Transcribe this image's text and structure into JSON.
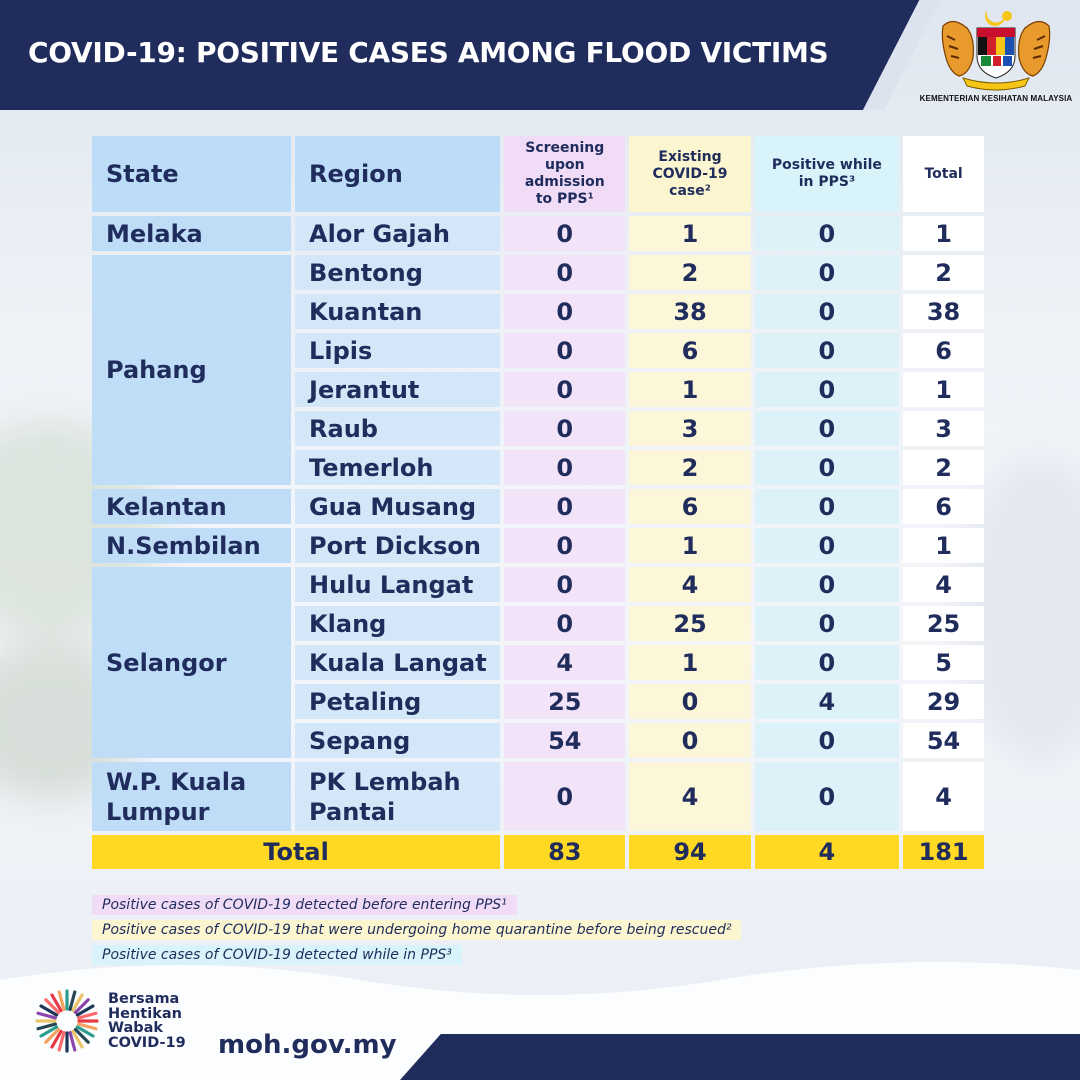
{
  "header": {
    "title": "COVID-19: POSITIVE CASES AMONG FLOOD VICTIMS"
  },
  "logo": {
    "caption": "KEMENTERIAN KESIHATAN MALAYSIA",
    "icon": "coat-of-arms-icon"
  },
  "table": {
    "headers": {
      "state": "State",
      "region": "Region",
      "screening": [
        "Screening",
        "upon",
        "admission",
        "to PPS¹"
      ],
      "existing": [
        "Existing",
        "COVID-19",
        "case²"
      ],
      "positive": [
        "Positive while",
        "in PPS³"
      ],
      "total": "Total"
    },
    "states": [
      {
        "name": "Melaka",
        "regions": [
          {
            "region": "Alor Gajah",
            "screening": "0",
            "existing": "1",
            "positive": "0",
            "total": "1"
          }
        ]
      },
      {
        "name": "Pahang",
        "regions": [
          {
            "region": "Bentong",
            "screening": "0",
            "existing": "2",
            "positive": "0",
            "total": "2"
          },
          {
            "region": "Kuantan",
            "screening": "0",
            "existing": "38",
            "positive": "0",
            "total": "38"
          },
          {
            "region": "Lipis",
            "screening": "0",
            "existing": "6",
            "positive": "0",
            "total": "6"
          },
          {
            "region": "Jerantut",
            "screening": "0",
            "existing": "1",
            "positive": "0",
            "total": "1"
          },
          {
            "region": "Raub",
            "screening": "0",
            "existing": "3",
            "positive": "0",
            "total": "3"
          },
          {
            "region": "Temerloh",
            "screening": "0",
            "existing": "2",
            "positive": "0",
            "total": "2"
          }
        ]
      },
      {
        "name": "Kelantan",
        "regions": [
          {
            "region": "Gua Musang",
            "screening": "0",
            "existing": "6",
            "positive": "0",
            "total": "6"
          }
        ]
      },
      {
        "name": "N.Sembilan",
        "regions": [
          {
            "region": "Port Dickson",
            "screening": "0",
            "existing": "1",
            "positive": "0",
            "total": "1"
          }
        ]
      },
      {
        "name": "Selangor",
        "regions": [
          {
            "region": "Hulu Langat",
            "screening": "0",
            "existing": "4",
            "positive": "0",
            "total": "4"
          },
          {
            "region": "Klang",
            "screening": "0",
            "existing": "25",
            "positive": "0",
            "total": "25"
          },
          {
            "region": "Kuala Langat",
            "screening": "4",
            "existing": "1",
            "positive": "0",
            "total": "5"
          },
          {
            "region": "Petaling",
            "screening": "25",
            "existing": "0",
            "positive": "4",
            "total": "29"
          },
          {
            "region": "Sepang",
            "screening": "54",
            "existing": "0",
            "positive": "0",
            "total": "54"
          }
        ]
      },
      {
        "name": "W.P. Kuala Lumpur",
        "regions": [
          {
            "region": "PK Lembah Pantai",
            "screening": "0",
            "existing": "4",
            "positive": "0",
            "total": "4"
          }
        ]
      }
    ],
    "totals": {
      "label": "Total",
      "screening": "83",
      "existing": "94",
      "positive": "4",
      "total": "181"
    }
  },
  "footnotes": [
    "Positive cases of COVID-19 detected before entering PPS¹",
    "Positive cases of COVID-19 that were undergoing home quarantine before being rescued²",
    "Positive cases of COVID-19 detected while in PPS³"
  ],
  "footer": {
    "campaign": [
      "Bersama",
      "Hentikan",
      "Wabak",
      "COVID-19"
    ],
    "website": "moh.gov.my"
  },
  "colors": {
    "navy": "#1f2c5c",
    "state_blue": "#c0ddf8",
    "screening_pink": "#f2e3f8",
    "existing_yellow": "#fbf7d8",
    "positive_cyan": "#dcf2f8",
    "total_yellow": "#ffd924"
  }
}
